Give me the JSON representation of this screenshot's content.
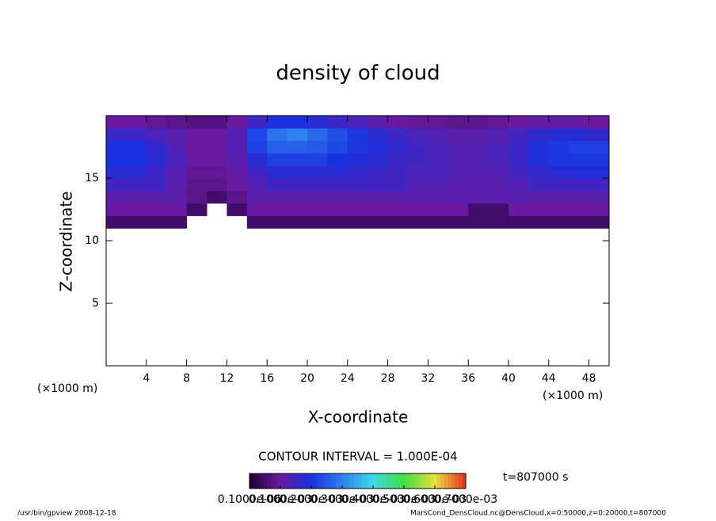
{
  "chart_data": {
    "type": "heatmap",
    "title": "density of cloud",
    "x_label": "X-coordinate",
    "y_label": "Z-coordinate",
    "x_unit_left": "(×1000 m)",
    "x_unit_right": "(×1000 m)",
    "contour_interval": "CONTOUR INTERVAL = 1.000E-04",
    "time": "t=807000 s",
    "footer_left": "/usr/bin/gpview   2008-12-18",
    "footer_right": "MarsCond_DensCloud.nc@DensCloud,x=0:50000,z=0:20000,t=807000",
    "xlim": [
      0,
      50
    ],
    "ylim": [
      0,
      20
    ],
    "xticks": [
      4,
      8,
      12,
      16,
      20,
      24,
      28,
      32,
      36,
      40,
      44,
      48
    ],
    "yticks": [
      5,
      10,
      15
    ],
    "x": [
      1,
      3,
      5,
      7,
      9,
      11,
      13,
      15,
      17,
      19,
      21,
      23,
      25,
      27,
      29,
      31,
      33,
      35,
      37,
      39,
      41,
      43,
      45,
      47,
      49
    ],
    "y": [
      11.5,
      12.5,
      13.5,
      14.5,
      15.5,
      16.5,
      17.5,
      18.5,
      19.5
    ],
    "values": [
      [
        5e-05,
        5e-05,
        5e-05,
        5e-05,
        null,
        null,
        null,
        5e-05,
        5e-05,
        5e-05,
        5e-05,
        5e-05,
        5e-05,
        5e-05,
        5e-05,
        5e-05,
        5e-05,
        5e-05,
        5e-05,
        5e-05,
        5e-05,
        5e-05,
        5e-05,
        5e-05,
        5e-05
      ],
      [
        0.0001,
        0.0001,
        0.0001,
        0.0001,
        5e-05,
        null,
        5e-05,
        0.0001,
        0.0001,
        0.0001,
        0.0001,
        0.0001,
        0.0001,
        0.0001,
        0.0001,
        0.0001,
        0.0001,
        0.0001,
        5e-05,
        5e-05,
        0.0001,
        0.0001,
        0.0001,
        0.0001,
        0.0001
      ],
      [
        0.00012,
        0.00012,
        0.00012,
        0.00012,
        8e-05,
        5e-05,
        8e-05,
        0.00012,
        0.00012,
        0.00012,
        0.00012,
        0.00012,
        0.00012,
        0.00012,
        0.00012,
        0.00012,
        0.00012,
        0.00012,
        0.00012,
        0.00012,
        0.00012,
        0.00012,
        0.00012,
        0.00012,
        0.00012
      ],
      [
        0.00015,
        0.00015,
        0.00015,
        0.00012,
        8e-05,
        8e-05,
        0.0001,
        0.00013,
        0.00015,
        0.00015,
        0.00015,
        0.00015,
        0.00015,
        0.00015,
        0.00015,
        0.00013,
        0.00013,
        0.00012,
        0.00012,
        0.00012,
        0.00013,
        0.00015,
        0.00015,
        0.00015,
        0.00015
      ],
      [
        0.00018,
        0.00018,
        0.00016,
        0.00013,
        9e-05,
        9e-05,
        0.00011,
        0.00015,
        0.00018,
        0.00018,
        0.00018,
        0.00018,
        0.00017,
        0.00016,
        0.00015,
        0.00014,
        0.00014,
        0.00013,
        0.00013,
        0.00013,
        0.00015,
        0.00017,
        0.00018,
        0.00019,
        0.00019
      ],
      [
        0.0002,
        0.0002,
        0.00018,
        0.00014,
        0.0001,
        0.0001,
        0.00012,
        0.00018,
        0.00022,
        0.00022,
        0.00022,
        0.0002,
        0.00019,
        0.00018,
        0.00016,
        0.00015,
        0.00014,
        0.00013,
        0.00013,
        0.00014,
        0.00016,
        0.00019,
        0.00021,
        0.00021,
        0.00021
      ],
      [
        0.0002,
        0.0002,
        0.00017,
        0.00013,
        0.0001,
        0.0001,
        0.00013,
        0.00022,
        0.00026,
        0.00026,
        0.00025,
        0.00023,
        0.00021,
        0.00019,
        0.00017,
        0.00015,
        0.00014,
        0.00013,
        0.00013,
        0.00014,
        0.00016,
        0.00019,
        0.00021,
        0.00022,
        0.00022
      ],
      [
        0.00016,
        0.00016,
        0.00014,
        0.00012,
        0.0001,
        0.0001,
        0.00013,
        0.00023,
        0.00028,
        0.0003,
        0.00027,
        0.00024,
        0.00021,
        0.00018,
        0.00016,
        0.00014,
        0.00013,
        0.00012,
        0.00012,
        0.00013,
        0.00015,
        0.00017,
        0.00018,
        0.00018,
        0.00017
      ],
      [
        0.0001,
        0.0001,
        9e-05,
        8e-05,
        7e-05,
        7e-05,
        0.0001,
        0.00016,
        0.0002,
        0.0002,
        0.00018,
        0.00016,
        0.00014,
        0.00012,
        0.0001,
        9e-05,
        9e-05,
        8e-05,
        8e-05,
        9e-05,
        0.0001,
        0.00011,
        0.00011,
        0.00011,
        0.0001
      ]
    ],
    "colormap": [
      "#1a0033",
      "#6a1aa0",
      "#1a30e0",
      "#2f80f0",
      "#40d8e8",
      "#40e040",
      "#e8e040",
      "#e03020"
    ],
    "colorbar_lim": [
      0,
      0.0007
    ],
    "colorbar_ticks": [
      {
        "value": 1e-07,
        "label": "0.1000e-06"
      },
      {
        "value": 0.0001,
        "label": "0.1000e-03"
      },
      {
        "value": 0.0002,
        "label": "0.2000e-03"
      },
      {
        "value": 0.0003,
        "label": "0.3000e-03"
      },
      {
        "value": 0.0004,
        "label": "0.4000e-03"
      },
      {
        "value": 0.0005,
        "label": "0.5000e-03"
      },
      {
        "value": 0.0006,
        "label": "0.6000e-03"
      },
      {
        "value": 0.0007,
        "label": "0.7000e-03"
      }
    ]
  }
}
